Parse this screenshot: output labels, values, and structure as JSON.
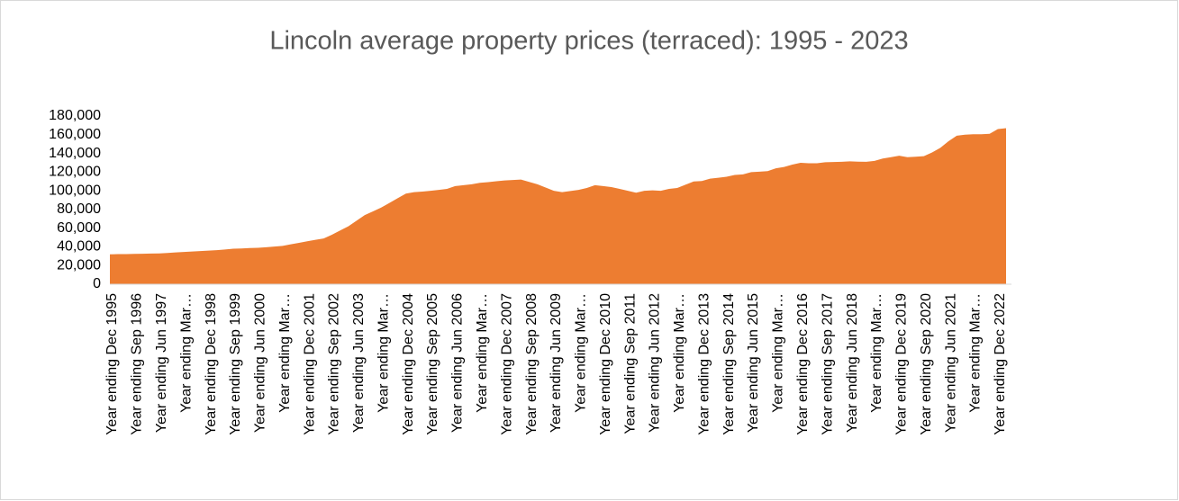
{
  "chart_data": {
    "type": "area",
    "title": "Lincoln average property prices (terraced): 1995 - 2023",
    "categories": [
      "Year ending Dec 1995",
      null,
      null,
      "Year ending Sep 1996",
      null,
      null,
      "Year ending Jun 1997",
      null,
      null,
      "Year ending Mar…",
      null,
      null,
      "Year ending Dec 1998",
      null,
      null,
      "Year ending Sep 1999",
      null,
      null,
      "Year ending Jun 2000",
      null,
      null,
      "Year ending Mar…",
      null,
      null,
      "Year ending Dec 2001",
      null,
      null,
      "Year ending Sep 2002",
      null,
      null,
      "Year ending Jun 2003",
      null,
      null,
      "Year ending Mar…",
      null,
      null,
      "Year ending Dec 2004",
      null,
      null,
      "Year ending Sep 2005",
      null,
      null,
      "Year ending Jun 2006",
      null,
      null,
      "Year ending Mar…",
      null,
      null,
      "Year ending Dec 2007",
      null,
      null,
      "Year ending Sep 2008",
      null,
      null,
      "Year ending Jun 2009",
      null,
      null,
      "Year ending Mar…",
      null,
      null,
      "Year ending Dec 2010",
      null,
      null,
      "Year ending Sep 2011",
      null,
      null,
      "Year ending Jun 2012",
      null,
      null,
      "Year ending Mar…",
      null,
      null,
      "Year ending Dec 2013",
      null,
      null,
      "Year ending Sep 2014",
      null,
      null,
      "Year ending Jun 2015",
      null,
      null,
      "Year ending Mar…",
      null,
      null,
      "Year ending Dec 2016",
      null,
      null,
      "Year ending Sep 2017",
      null,
      null,
      "Year ending Jun 2018",
      null,
      null,
      "Year ending Mar…",
      null,
      null,
      "Year ending Dec 2019",
      null,
      null,
      "Year ending Sep 2020",
      null,
      null,
      "Year ending Jun 2021",
      null,
      null,
      "Year ending Mar…",
      null,
      null,
      "Year ending Dec 2022",
      null
    ],
    "values": [
      32000,
      32200,
      32300,
      32500,
      32600,
      32800,
      33000,
      33500,
      34000,
      34500,
      35000,
      35500,
      36000,
      36500,
      37200,
      38000,
      38300,
      38700,
      39000,
      39600,
      40300,
      41000,
      42700,
      44300,
      46000,
      47500,
      49000,
      53000,
      57500,
      62000,
      68000,
      74000,
      78000,
      82000,
      87000,
      92000,
      97000,
      98500,
      99200,
      100000,
      101000,
      102000,
      105000,
      106000,
      107000,
      108500,
      109300,
      110200,
      111000,
      111500,
      112000,
      109500,
      107000,
      103500,
      100000,
      98500,
      99700,
      101000,
      103000,
      106000,
      105000,
      104000,
      102000,
      100000,
      98000,
      100000,
      100500,
      100000,
      102000,
      103000,
      106500,
      110000,
      110500,
      113000,
      114000,
      115000,
      117000,
      117500,
      120000,
      120500,
      121000,
      124000,
      125500,
      128000,
      130000,
      129500,
      129500,
      130500,
      130800,
      131000,
      131500,
      131200,
      131000,
      132000,
      134500,
      136000,
      137500,
      136000,
      136500,
      137000,
      141000,
      146000,
      153000,
      159000,
      160000,
      160500,
      160500,
      161000,
      166000,
      167000
    ],
    "color": "#ed7d31",
    "ylim": [
      0,
      180000
    ],
    "yticks": [
      0,
      {
        "value": 20000,
        "label": "20,000"
      },
      {
        "value": 40000,
        "label": "40,000"
      },
      {
        "value": 60000,
        "label": "60,000"
      },
      {
        "value": 80000,
        "label": "80,000"
      },
      {
        "value": 100000,
        "label": "100,000"
      },
      {
        "value": 120000,
        "label": "120,000"
      },
      {
        "value": 140000,
        "label": "140,000"
      },
      {
        "value": 160000,
        "label": "160,000"
      },
      {
        "value": 180000,
        "label": "180,000"
      }
    ],
    "grid": false
  }
}
